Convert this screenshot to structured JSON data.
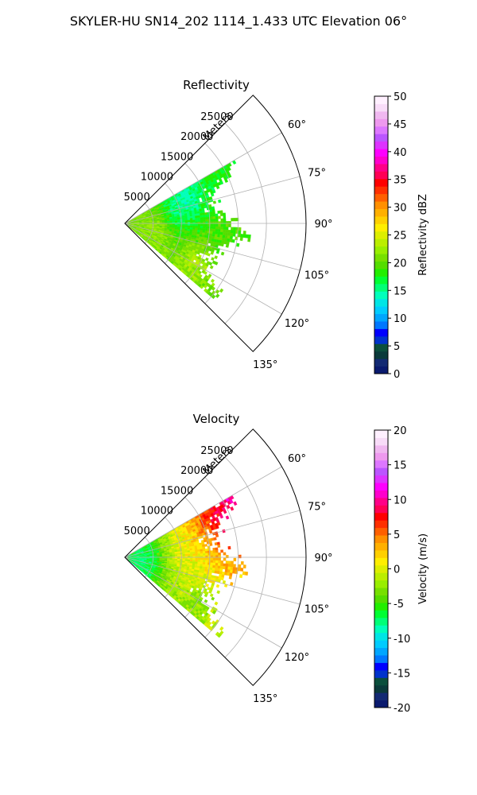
{
  "figure": {
    "title": "SKYLER-HU  SN14_202  1114_1.433 UTC Elevation 06°"
  },
  "chart_data": [
    {
      "type": "heatmap",
      "projection": "polar-sector",
      "title": "Reflectivity",
      "radial_axis_label": "Meters",
      "radial_ticks": [
        "5000",
        "10000",
        "15000",
        "20000",
        "25000"
      ],
      "radial_range": [
        0,
        32000
      ],
      "azimuth_range_deg": [
        45,
        135
      ],
      "azimuth_ticks": [
        "60°",
        "75°",
        "90°",
        "105°",
        "120°",
        "135°"
      ],
      "grid": true,
      "colorbar": {
        "label": "Reflectivity dBZ",
        "ticks": [
          "0",
          "5",
          "10",
          "15",
          "20",
          "25",
          "30",
          "35",
          "40",
          "45",
          "50"
        ],
        "range": [
          0,
          50
        ],
        "colors": [
          "#0a1a6e",
          "#132a73",
          "#0a3a3a",
          "#0b4f3c",
          "#0033cc",
          "#0000ff",
          "#0077ff",
          "#00a6ff",
          "#00ccff",
          "#00e5e5",
          "#00ffbb",
          "#00ff77",
          "#00ff33",
          "#22ee00",
          "#55dd00",
          "#77e000",
          "#99ee00",
          "#bbee00",
          "#ddee00",
          "#ffee00",
          "#ffd000",
          "#ffb000",
          "#ff9000",
          "#ff6000",
          "#ff3000",
          "#ff0000",
          "#ff0055",
          "#ff0088",
          "#ff00cc",
          "#ff00ff",
          "#dd33ff",
          "#bb55ff",
          "#dd77ff",
          "#ee99ee",
          "#f0b8f0",
          "#f8dcf8",
          "#fff0ff"
        ]
      },
      "field": {
        "description": "Mostly 15–25 dBZ echoes; near-range band around 20–25 dBZ, patches of 10–14 dBZ at far range near 60–75°",
        "base_value": 20,
        "cells": [
          {
            "az": 72,
            "r": 11000,
            "value": 12
          },
          {
            "az": 80,
            "r": 9000,
            "value": 14
          },
          {
            "az": 85,
            "r": 4000,
            "value": 22
          },
          {
            "az": 100,
            "r": 6000,
            "value": 24
          },
          {
            "az": 115,
            "r": 14000,
            "value": 25
          },
          {
            "az": 70,
            "r": 20000,
            "value": 18
          },
          {
            "az": 90,
            "r": 16000,
            "value": 20
          },
          {
            "az": 105,
            "r": 17000,
            "value": 18
          }
        ],
        "az_extent": [
          60,
          130
        ],
        "r_extent": [
          0,
          24000
        ]
      }
    },
    {
      "type": "heatmap",
      "projection": "polar-sector",
      "title": "Velocity",
      "radial_axis_label": "Meters",
      "radial_ticks": [
        "5000",
        "10000",
        "15000",
        "20000",
        "25000"
      ],
      "radial_range": [
        0,
        32000
      ],
      "azimuth_range_deg": [
        45,
        135
      ],
      "azimuth_ticks": [
        "60°",
        "75°",
        "90°",
        "105°",
        "120°",
        "135°"
      ],
      "grid": true,
      "colorbar": {
        "label": "Velocity (m/s)",
        "ticks": [
          "-20",
          "-15",
          "-10",
          "-5",
          "0",
          "5",
          "10",
          "15",
          "20"
        ],
        "range": [
          -20,
          20
        ],
        "colors": [
          "#0a1a6e",
          "#132a73",
          "#0a3a3a",
          "#0b4f3c",
          "#0033cc",
          "#0000ff",
          "#0077ff",
          "#00a6ff",
          "#00ccff",
          "#00e5e5",
          "#00ffbb",
          "#00ff77",
          "#00ff33",
          "#22ee00",
          "#55dd00",
          "#77e000",
          "#99ee00",
          "#bbee00",
          "#ddee00",
          "#ffee00",
          "#ffd000",
          "#ffb000",
          "#ff9000",
          "#ff6000",
          "#ff3000",
          "#ff0000",
          "#ff0055",
          "#ff0088",
          "#ff00cc",
          "#ff00ff",
          "#dd33ff",
          "#bb55ff",
          "#dd77ff",
          "#ee99ee",
          "#f0b8f0",
          "#f8dcf8",
          "#fff0ff"
        ]
      },
      "field": {
        "description": "Near range about -8 m/s, mid range about 0 m/s, far range at 60–80° about 8–12 m/s, far range at 110–125° about -4 m/s",
        "base_value": 0,
        "cells": [
          {
            "az": 90,
            "r": 3000,
            "value": -9
          },
          {
            "az": 105,
            "r": 4000,
            "value": -8
          },
          {
            "az": 85,
            "r": 10000,
            "value": 1
          },
          {
            "az": 100,
            "r": 12000,
            "value": 0
          },
          {
            "az": 70,
            "r": 18000,
            "value": 9
          },
          {
            "az": 62,
            "r": 22000,
            "value": 13
          },
          {
            "az": 80,
            "r": 20000,
            "value": 8
          },
          {
            "az": 118,
            "r": 15000,
            "value": -4
          },
          {
            "az": 95,
            "r": 18000,
            "value": 3
          }
        ],
        "az_extent": [
          60,
          130
        ],
        "r_extent": [
          0,
          24000
        ]
      }
    }
  ]
}
